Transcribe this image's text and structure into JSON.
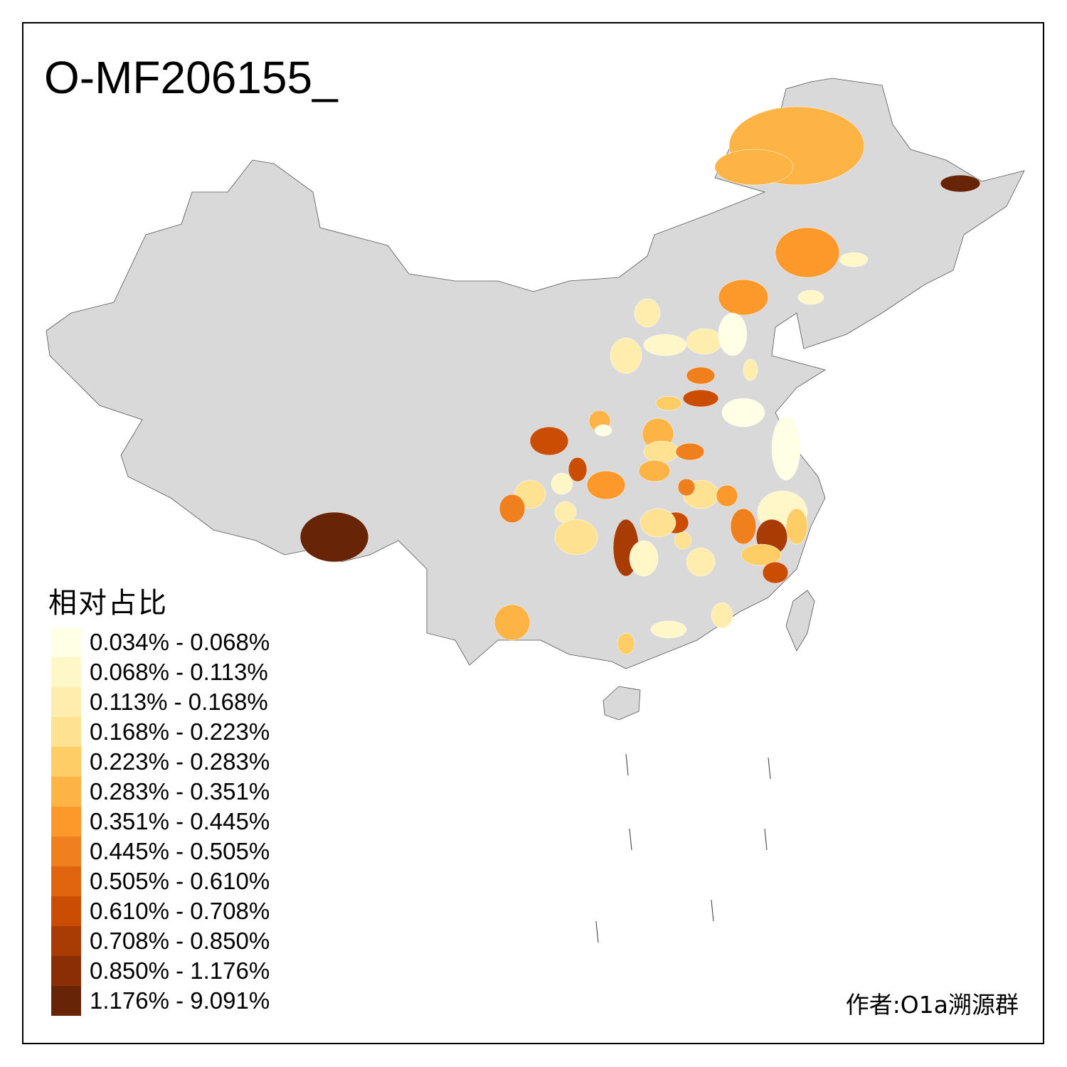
{
  "title": "O-MF206155_",
  "legend": {
    "title": "相对占比",
    "items": [
      {
        "label": "0.034% - 0.068%",
        "color": "#ffffe5"
      },
      {
        "label": "0.068% - 0.113%",
        "color": "#fff7c8"
      },
      {
        "label": "0.113% - 0.168%",
        "color": "#feedac"
      },
      {
        "label": "0.168% - 0.223%",
        "color": "#fee292"
      },
      {
        "label": "0.223% - 0.283%",
        "color": "#fecd66"
      },
      {
        "label": "0.283% - 0.351%",
        "color": "#feb444"
      },
      {
        "label": "0.351% - 0.445%",
        "color": "#fd982a"
      },
      {
        "label": "0.445% - 0.505%",
        "color": "#f07f1e"
      },
      {
        "label": "0.505% - 0.610%",
        "color": "#e1640f"
      },
      {
        "label": "0.610% - 0.708%",
        "color": "#cb4c03"
      },
      {
        "label": "0.708% - 0.850%",
        "color": "#a93c04"
      },
      {
        "label": "0.850% - 1.176%",
        "color": "#8a2f05"
      },
      {
        "label": "1.176% - 9.091%",
        "color": "#682407"
      }
    ]
  },
  "no_data_color": "#d9d9d9",
  "credit": "作者:O1a溯源群"
}
